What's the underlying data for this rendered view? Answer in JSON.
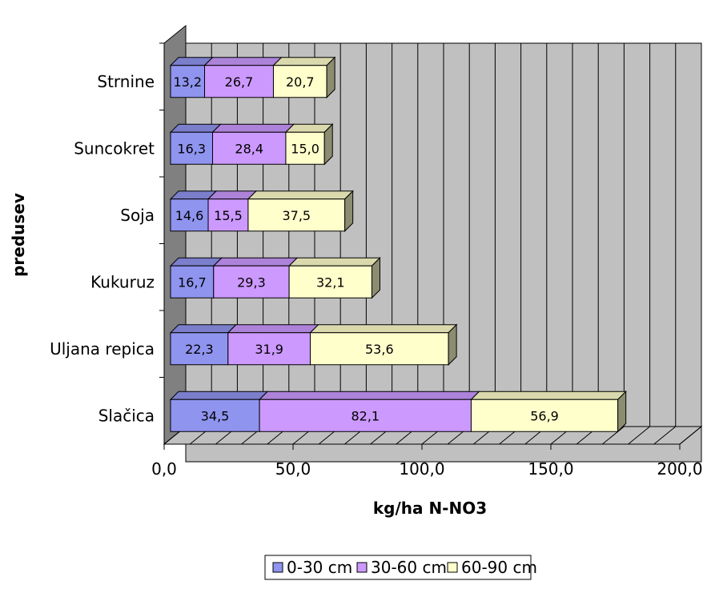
{
  "chart_data": {
    "type": "bar",
    "orientation": "horizontal",
    "stacked": true,
    "three_d": true,
    "categories": [
      "Strnine",
      "Suncokret",
      "Soja",
      "Kukuruz",
      "Uljana repica",
      "Slačica"
    ],
    "series": [
      {
        "name": "0-30 cm",
        "color": "#8f94ef",
        "values": [
          13.2,
          16.3,
          14.6,
          16.7,
          22.3,
          34.5
        ],
        "labels": [
          "13,2",
          "16,3",
          "14,6",
          "16,7",
          "22,3",
          "34,5"
        ]
      },
      {
        "name": "30-60 cm",
        "color": "#cc99ff",
        "values": [
          26.7,
          28.4,
          15.5,
          29.3,
          31.9,
          82.1
        ],
        "labels": [
          "26,7",
          "28,4",
          "15,5",
          "29,3",
          "31,9",
          "82,1"
        ]
      },
      {
        "name": "60-90 cm",
        "color": "#ffffcc",
        "values": [
          20.7,
          15.0,
          37.5,
          32.1,
          53.6,
          56.9
        ],
        "labels": [
          "20,7",
          "15,0",
          "37,5",
          "32,1",
          "53,6",
          "56,9"
        ]
      }
    ],
    "xlim": [
      0,
      200
    ],
    "x_ticks": [
      0,
      50,
      100,
      150,
      200
    ],
    "x_tick_labels": [
      "0,0",
      "50,0",
      "100,0",
      "150,0",
      "200,0"
    ],
    "xlabel": "kg/ha N-NO3",
    "ylabel": "predusev",
    "title": "",
    "grid": true,
    "wall_color": "#c0c0c0",
    "legend_position": "bottom"
  }
}
